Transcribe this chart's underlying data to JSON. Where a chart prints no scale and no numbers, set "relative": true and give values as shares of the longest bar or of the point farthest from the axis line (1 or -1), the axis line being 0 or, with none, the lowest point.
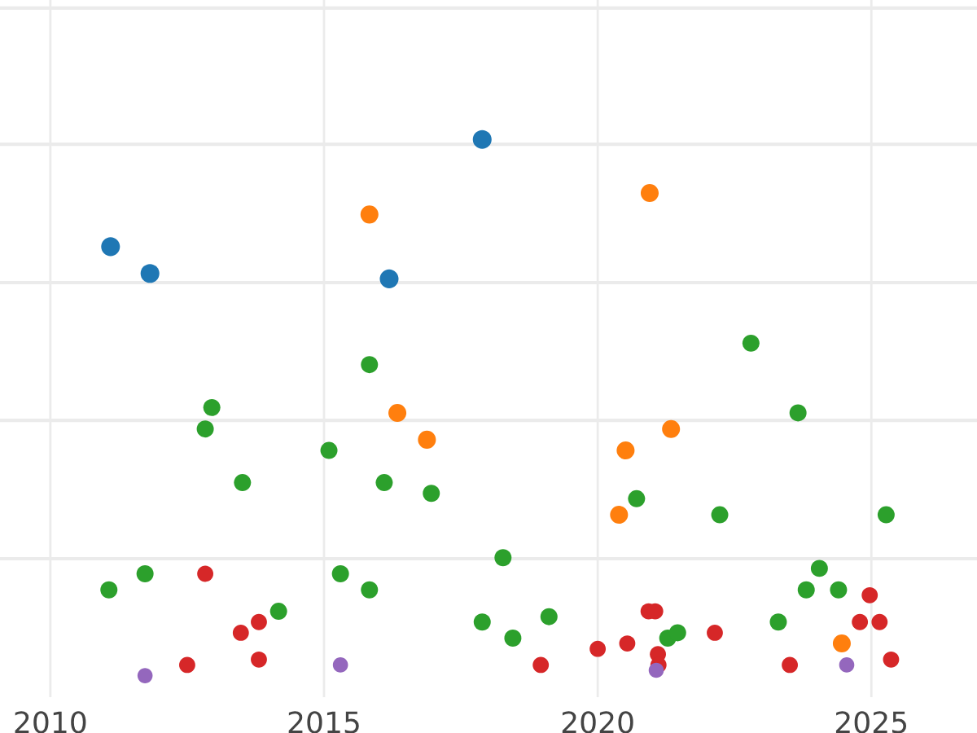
{
  "chart_data": {
    "type": "scatter",
    "relative": true,
    "grid": true,
    "legend": false,
    "tick_labels": "x",
    "marker": "circle",
    "xlim": [
      2009.08,
      2026.93
    ],
    "xticks": [
      2010,
      2015,
      2020,
      2025
    ],
    "series": [
      {
        "color": "#1f77b4",
        "x": [
          2011.1,
          2011.82,
          2016.19,
          2017.89
        ],
        "values": [
          0.8,
          0.75,
          0.74,
          1.0
        ]
      },
      {
        "color": "#ff7f0e",
        "x": [
          2015.83,
          2020.95,
          2016.34,
          2016.88,
          2020.51,
          2021.34,
          2020.39,
          2024.46
        ],
        "values": [
          0.86,
          0.9,
          0.49,
          0.44,
          0.42,
          0.46,
          0.3,
          0.06
        ]
      },
      {
        "color": "#2ca02c",
        "x": [
          2011.07,
          2011.73,
          2012.83,
          2012.95,
          2013.51,
          2014.17,
          2015.09,
          2015.3,
          2015.83,
          2015.83,
          2016.1,
          2016.96,
          2017.89,
          2018.27,
          2018.45,
          2019.11,
          2020.71,
          2021.28,
          2021.46,
          2022.23,
          2022.8,
          2023.3,
          2023.66,
          2023.81,
          2024.05,
          2024.4,
          2025.27
        ],
        "values": [
          0.16,
          0.19,
          0.46,
          0.5,
          0.36,
          0.12,
          0.42,
          0.19,
          0.58,
          0.16,
          0.36,
          0.34,
          0.1,
          0.22,
          0.07,
          0.11,
          0.33,
          0.07,
          0.08,
          0.3,
          0.62,
          0.1,
          0.49,
          0.16,
          0.2,
          0.16,
          0.3
        ]
      },
      {
        "color": "#d62728",
        "x": [
          2012.5,
          2012.83,
          2013.48,
          2013.81,
          2013.81,
          2018.96,
          2020.0,
          2020.54,
          2020.93,
          2021.05,
          2021.1,
          2021.11,
          2022.14,
          2023.51,
          2024.79,
          2024.97,
          2025.15,
          2025.36
        ],
        "values": [
          0.02,
          0.19,
          0.08,
          0.1,
          0.03,
          0.02,
          0.05,
          0.06,
          0.12,
          0.12,
          0.04,
          0.02,
          0.08,
          0.02,
          0.1,
          0.15,
          0.1,
          0.03
        ]
      },
      {
        "color": "#9467bd",
        "x": [
          2011.73,
          2015.3,
          2021.07,
          2024.55
        ],
        "values": [
          0.0,
          0.02,
          0.01,
          0.02
        ]
      }
    ]
  }
}
